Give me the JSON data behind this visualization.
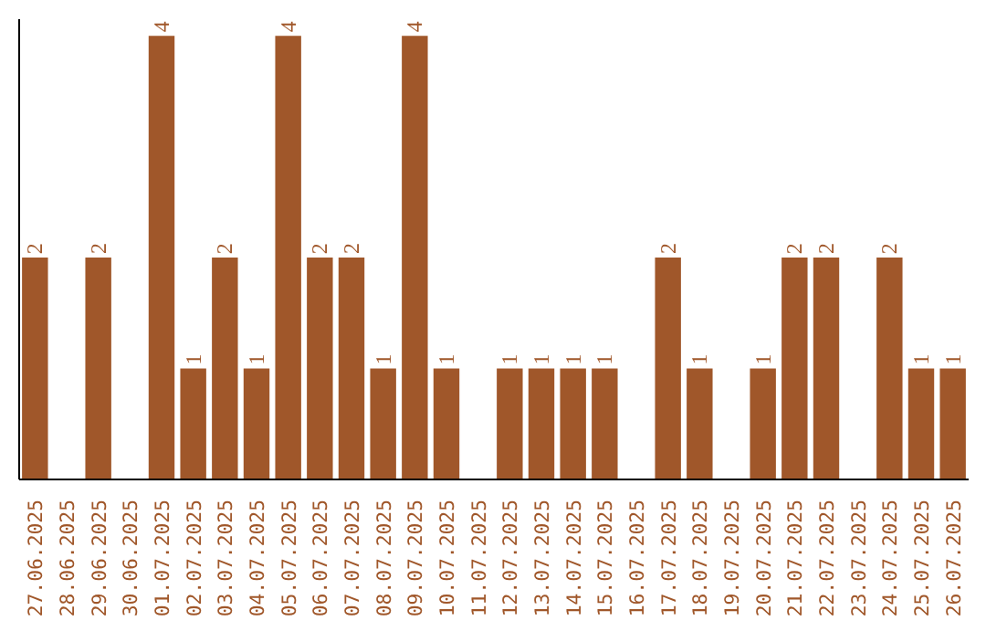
{
  "chart_data": {
    "type": "bar",
    "categories": [
      "27.06.2025",
      "28.06.2025",
      "29.06.2025",
      "30.06.2025",
      "01.07.2025",
      "02.07.2025",
      "03.07.2025",
      "04.07.2025",
      "05.07.2025",
      "06.07.2025",
      "07.07.2025",
      "08.07.2025",
      "09.07.2025",
      "10.07.2025",
      "11.07.2025",
      "12.07.2025",
      "13.07.2025",
      "14.07.2025",
      "15.07.2025",
      "16.07.2025",
      "17.07.2025",
      "18.07.2025",
      "19.07.2025",
      "20.07.2025",
      "21.07.2025",
      "22.07.2025",
      "23.07.2025",
      "24.07.2025",
      "25.07.2025",
      "26.07.2025"
    ],
    "values": [
      2,
      0,
      2,
      0,
      4,
      1,
      2,
      1,
      4,
      2,
      2,
      1,
      4,
      1,
      0,
      1,
      1,
      1,
      1,
      0,
      2,
      1,
      0,
      1,
      2,
      2,
      0,
      2,
      1,
      1
    ],
    "value_labels": [
      "2",
      null,
      "2",
      null,
      "4",
      "1",
      "2",
      "1",
      "4",
      "2",
      "2",
      "1",
      "4",
      "1",
      null,
      "1",
      "1",
      "1",
      "1",
      null,
      "2",
      "1",
      null,
      "1",
      "2",
      "2",
      null,
      "2",
      "1",
      "1"
    ],
    "color": "#a0572a",
    "ylim": [
      0,
      4.15
    ],
    "tick_labels": "x",
    "grid": false
  }
}
